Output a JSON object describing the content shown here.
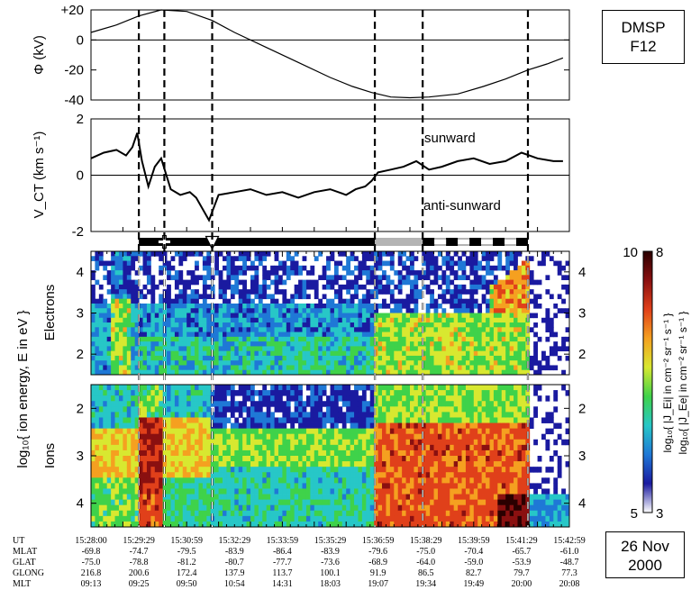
{
  "satellite": {
    "line1": "DMSP",
    "line2": "F12"
  },
  "date": {
    "line1": "26 Nov",
    "line2": "2000"
  },
  "colors": {
    "line": "#000000",
    "bar_black": "#000000",
    "bar_gray": "#b4b4b4"
  },
  "chart_data": [
    {
      "type": "line",
      "panel": "potential",
      "ylabel": "Φ (kV)",
      "ylim": [
        -40,
        20
      ],
      "yticks": [
        "+20",
        "0",
        "-20",
        "-40"
      ],
      "ytick_values": [
        20,
        0,
        -20,
        -40
      ],
      "x": [
        0,
        0.8,
        1.5,
        2.2,
        3.0,
        3.8,
        4.5,
        5.5,
        6.5,
        7.5,
        8.2,
        8.8,
        9.4,
        10.0,
        10.6,
        11.5,
        12.3,
        13.0,
        13.7,
        14.3,
        14.8
      ],
      "y": [
        5,
        10,
        16,
        20,
        19,
        13,
        5,
        -5,
        -15,
        -25,
        -31,
        -35,
        -38,
        -38.5,
        -38,
        -36,
        -31,
        -26,
        -20,
        -16,
        -12
      ]
    },
    {
      "type": "line",
      "panel": "velocity",
      "ylabel": "V_CT (km s⁻¹)",
      "ylim": [
        -2,
        2
      ],
      "yticks": [
        "2",
        "0",
        "-2"
      ],
      "ytick_values": [
        2,
        0,
        -2
      ],
      "annotations": [
        "sunward",
        "anti-sunward"
      ],
      "x": [
        0,
        0.4,
        0.8,
        1.1,
        1.3,
        1.45,
        1.6,
        1.8,
        2.0,
        2.2,
        2.5,
        2.8,
        3.1,
        3.3,
        3.5,
        3.7,
        4.0,
        4.5,
        5.0,
        5.5,
        6.0,
        6.5,
        7.0,
        7.5,
        8.0,
        8.3,
        8.6,
        8.8,
        9.0,
        9.4,
        9.8,
        10.2,
        10.6,
        11.0,
        11.5,
        12.0,
        12.5,
        13.0,
        13.5,
        14.0,
        14.5,
        14.8
      ],
      "y": [
        0.6,
        0.8,
        0.9,
        0.7,
        1.0,
        1.5,
        0.5,
        -0.4,
        0.3,
        0.6,
        -0.5,
        -0.7,
        -0.6,
        -0.8,
        -1.2,
        -1.6,
        -0.7,
        -0.6,
        -0.5,
        -0.7,
        -0.6,
        -0.8,
        -0.6,
        -0.5,
        -0.7,
        -0.5,
        -0.4,
        -0.2,
        0.1,
        0.2,
        0.3,
        0.5,
        0.2,
        0.3,
        0.5,
        0.6,
        0.4,
        0.5,
        0.8,
        0.6,
        0.5,
        0.5
      ]
    },
    {
      "type": "heatmap",
      "panel": "electrons",
      "ylabel": "Electrons",
      "ylim": [
        1.5,
        4.5
      ],
      "yticks": [
        "4",
        "3",
        "2"
      ],
      "ytick_values": [
        4,
        3,
        2
      ]
    },
    {
      "type": "heatmap",
      "panel": "ions",
      "ylabel": "Ions",
      "ylim": [
        4.5,
        1.5
      ],
      "yticks": [
        "2",
        "3",
        "4"
      ],
      "ytick_values": [
        2,
        3,
        4
      ]
    }
  ],
  "spectrogram_axis_label": "log₁₀{ ion energy, E in eV }",
  "colorbar": {
    "top_left": "10",
    "top_right": "8",
    "bottom_left": "5",
    "bottom_right": "3",
    "label_ion": "log₁₀{ |J_Ei| in cm⁻² sr⁻¹ s⁻¹ }",
    "label_electron": "log₁₀{ |J_Ee| in cm⁻² sr⁻¹ s⁻¹ }",
    "stops": [
      "#ffffff",
      "#1a1aa0",
      "#1f78d6",
      "#27c7c7",
      "#3fd24a",
      "#d8e830",
      "#f5a020",
      "#e0401a",
      "#8a1010",
      "#2a0000"
    ]
  },
  "boundary_times": [
    1.5,
    2.3,
    3.8,
    8.9,
    10.4,
    13.7
  ],
  "boundary_bar": [
    {
      "from": 1.5,
      "to": 8.9,
      "style": "black"
    },
    {
      "from": 8.9,
      "to": 10.4,
      "style": "gray"
    },
    {
      "from": 10.4,
      "to": 13.7,
      "style": "dashed"
    }
  ],
  "bar_markers": [
    {
      "at": 2.3,
      "symbol": "cross"
    },
    {
      "at": 3.8,
      "symbol": "triangle"
    }
  ],
  "orbit_table": {
    "labels": [
      "UT",
      "MLAT",
      "GLAT",
      "GLONG",
      "MLT"
    ],
    "columns": [
      [
        "15:28:00",
        "-69.8",
        "-75.0",
        "216.8",
        "09:13"
      ],
      [
        "15:29:29",
        "-74.7",
        "-78.8",
        "200.6",
        "09:25"
      ],
      [
        "15:30:59",
        "-79.5",
        "-81.2",
        "172.4",
        "09:50"
      ],
      [
        "15:32:29",
        "-83.9",
        "-80.7",
        "137.9",
        "10:54"
      ],
      [
        "15:33:59",
        "-86.4",
        "-77.7",
        "113.7",
        "14:31"
      ],
      [
        "15:35:29",
        "-83.9",
        "-73.6",
        "100.1",
        "18:03"
      ],
      [
        "15:36:59",
        "-79.6",
        "-68.9",
        "91.9",
        "19:07"
      ],
      [
        "15:38:29",
        "-75.0",
        "-64.0",
        "86.5",
        "19:34"
      ],
      [
        "15:39:59",
        "-70.4",
        "-59.0",
        "82.7",
        "19:49"
      ],
      [
        "15:41:29",
        "-65.7",
        "-53.9",
        "79.7",
        "20:00"
      ],
      [
        "15:42:59",
        "-61.0",
        "-48.7",
        "77.3",
        "20:08"
      ]
    ]
  }
}
